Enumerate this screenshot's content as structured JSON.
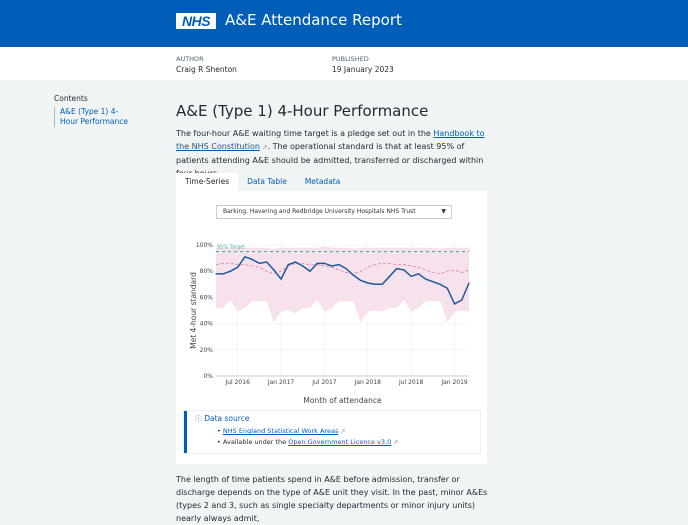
{
  "header": {
    "logo": "NHS",
    "title": "A&E Attendance Report"
  },
  "meta": {
    "author_label": "AUTHOR",
    "author": "Craig R Shenton",
    "published_label": "PUBLISHED",
    "published": "19 January 2023"
  },
  "toc": {
    "heading": "Contents",
    "items": [
      {
        "label": "A&E (Type 1) 4-Hour Performance"
      }
    ]
  },
  "main": {
    "title": "A&E (Type 1) 4-Hour Performance",
    "intro_before": "The four-hour A&E waiting time target is a pledge set out in the ",
    "intro_link": "Handbook to the NHS Constitution",
    "intro_after": ". The operational standard is that at least 95% of patients attending A&E should be admitted, transferred or discharged within four hours.",
    "tabs": [
      {
        "label": "Time-Series",
        "active": true
      },
      {
        "label": "Data Table"
      },
      {
        "label": "Metadata"
      }
    ],
    "trust_select": "Barking, Havering and Redbridge University Hospitals NHS Trust",
    "data_source": {
      "heading": "Data source",
      "link1": "NHS England Statistical Work Areas",
      "item2_before": "Available under the ",
      "link2": "Open Government Licence v3.0"
    },
    "para2": "The length of time patients spend in A&E before admission, transfer or discharge depends on the type of A&E unit they visit. In the past, minor A&Es (types 2 and 3, such as single specialty departments or minor injury units) nearly always admit,"
  },
  "colors": {
    "brand": "#005eb8",
    "line": "#1d5a9c",
    "median": "#d88aa8",
    "band": "#f6e1ec",
    "target": "#41b6a6"
  },
  "chart_data": {
    "type": "line",
    "xlabel": "Month of attendance",
    "ylabel": "Met 4-hour standard",
    "ylim": [
      0,
      100
    ],
    "yticks": [
      "0%",
      "20%",
      "40%",
      "60%",
      "80%",
      "100%"
    ],
    "xticks": [
      {
        "label": "Jul 2016",
        "x": "2016-07"
      },
      {
        "label": "Jan 2017",
        "x": "2017-01"
      },
      {
        "label": "Jul 2017",
        "x": "2017-07"
      },
      {
        "label": "Jan 2018",
        "x": "2018-01"
      },
      {
        "label": "Jul 2018",
        "x": "2018-07"
      },
      {
        "label": "Jan 2019",
        "x": "2019-01"
      }
    ],
    "target": {
      "label": "95% Target",
      "value": 95
    },
    "x": [
      "2016-04",
      "2016-05",
      "2016-06",
      "2016-07",
      "2016-08",
      "2016-09",
      "2016-10",
      "2016-11",
      "2016-12",
      "2017-01",
      "2017-02",
      "2017-03",
      "2017-04",
      "2017-05",
      "2017-06",
      "2017-07",
      "2017-08",
      "2017-09",
      "2017-10",
      "2017-11",
      "2017-12",
      "2018-01",
      "2018-02",
      "2018-03",
      "2018-04",
      "2018-05",
      "2018-06",
      "2018-07",
      "2018-08",
      "2018-09",
      "2018-10",
      "2018-11",
      "2018-12",
      "2019-01",
      "2019-02",
      "2019-03"
    ],
    "series": [
      {
        "values": [
          78,
          78,
          80,
          83,
          91,
          89,
          86,
          87,
          81,
          74,
          85,
          87,
          84,
          80,
          86,
          86,
          84,
          85,
          82,
          77,
          73,
          71,
          70,
          70,
          76,
          82,
          81,
          76,
          78,
          74,
          72,
          70,
          67,
          55,
          58,
          71
        ]
      },
      {
        "role": "median",
        "values": [
          85,
          86,
          86,
          85,
          85,
          84,
          83,
          80,
          78,
          80,
          84,
          86,
          86,
          85,
          85,
          84,
          83,
          81,
          79,
          78,
          80,
          83,
          85,
          86,
          86,
          85,
          85,
          84,
          83,
          81,
          79,
          78,
          80,
          81,
          79,
          81
        ]
      }
    ],
    "band": {
      "upper": [
        98,
        98,
        98,
        98,
        98,
        98,
        98,
        98,
        97,
        98,
        98,
        98,
        98,
        98,
        98,
        99,
        98,
        98,
        98,
        97,
        98,
        98,
        98,
        98,
        98,
        98,
        98,
        98,
        98,
        98,
        98,
        97,
        98,
        98,
        98,
        98
      ],
      "lower": [
        52,
        52,
        58,
        49,
        52,
        57,
        57,
        57,
        41,
        49,
        50,
        48,
        52,
        52,
        58,
        49,
        52,
        57,
        57,
        57,
        41,
        49,
        50,
        49,
        52,
        52,
        58,
        49,
        52,
        57,
        57,
        57,
        41,
        49,
        50,
        49
      ]
    },
    "grid": true
  }
}
